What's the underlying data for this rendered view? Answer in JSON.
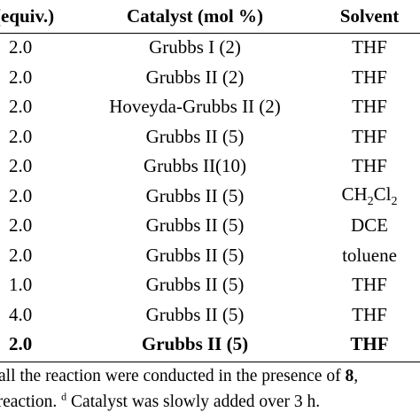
{
  "table": {
    "headers": [
      "(equiv.)",
      "Catalyst (mol %)",
      "Solvent"
    ],
    "rows": [
      {
        "equiv": "2.0",
        "catalyst": "Grubbs I (2)",
        "solvent": "THF"
      },
      {
        "equiv": "2.0",
        "catalyst": "Grubbs II (2)",
        "solvent": "THF"
      },
      {
        "equiv": "2.0",
        "catalyst": "Hoveyda-Grubbs II (2)",
        "solvent": "THF"
      },
      {
        "equiv": "2.0",
        "catalyst": "Grubbs II (5)",
        "solvent": "THF"
      },
      {
        "equiv": "2.0",
        "catalyst": "Grubbs II(10)",
        "solvent": "THF"
      },
      {
        "equiv": "2.0",
        "catalyst": "Grubbs II (5)",
        "solvent": "CH2Cl2",
        "solvent_parts": [
          "CH",
          "2",
          "Cl",
          "2"
        ]
      },
      {
        "equiv": "2.0",
        "catalyst": "Grubbs II (5)",
        "solvent": "DCE"
      },
      {
        "equiv": "2.0",
        "catalyst": "Grubbs II (5)",
        "solvent": "toluene"
      },
      {
        "equiv": "1.0",
        "catalyst": "Grubbs II (5)",
        "solvent": "THF"
      },
      {
        "equiv": "4.0",
        "catalyst": "Grubbs II (5)",
        "solvent": "THF"
      },
      {
        "equiv": "2.0",
        "catalyst": "Grubbs II (5)",
        "solvent": "THF",
        "bold": true
      }
    ]
  },
  "footnotes": {
    "line1_text": "all the reaction were conducted in the presence of ",
    "line1_bold": "8",
    "line1_end": ",",
    "line2_text": "o reaction. ",
    "line2_mark": "d",
    "line2_rest": " Catalyst was slowly added over 3 h."
  }
}
